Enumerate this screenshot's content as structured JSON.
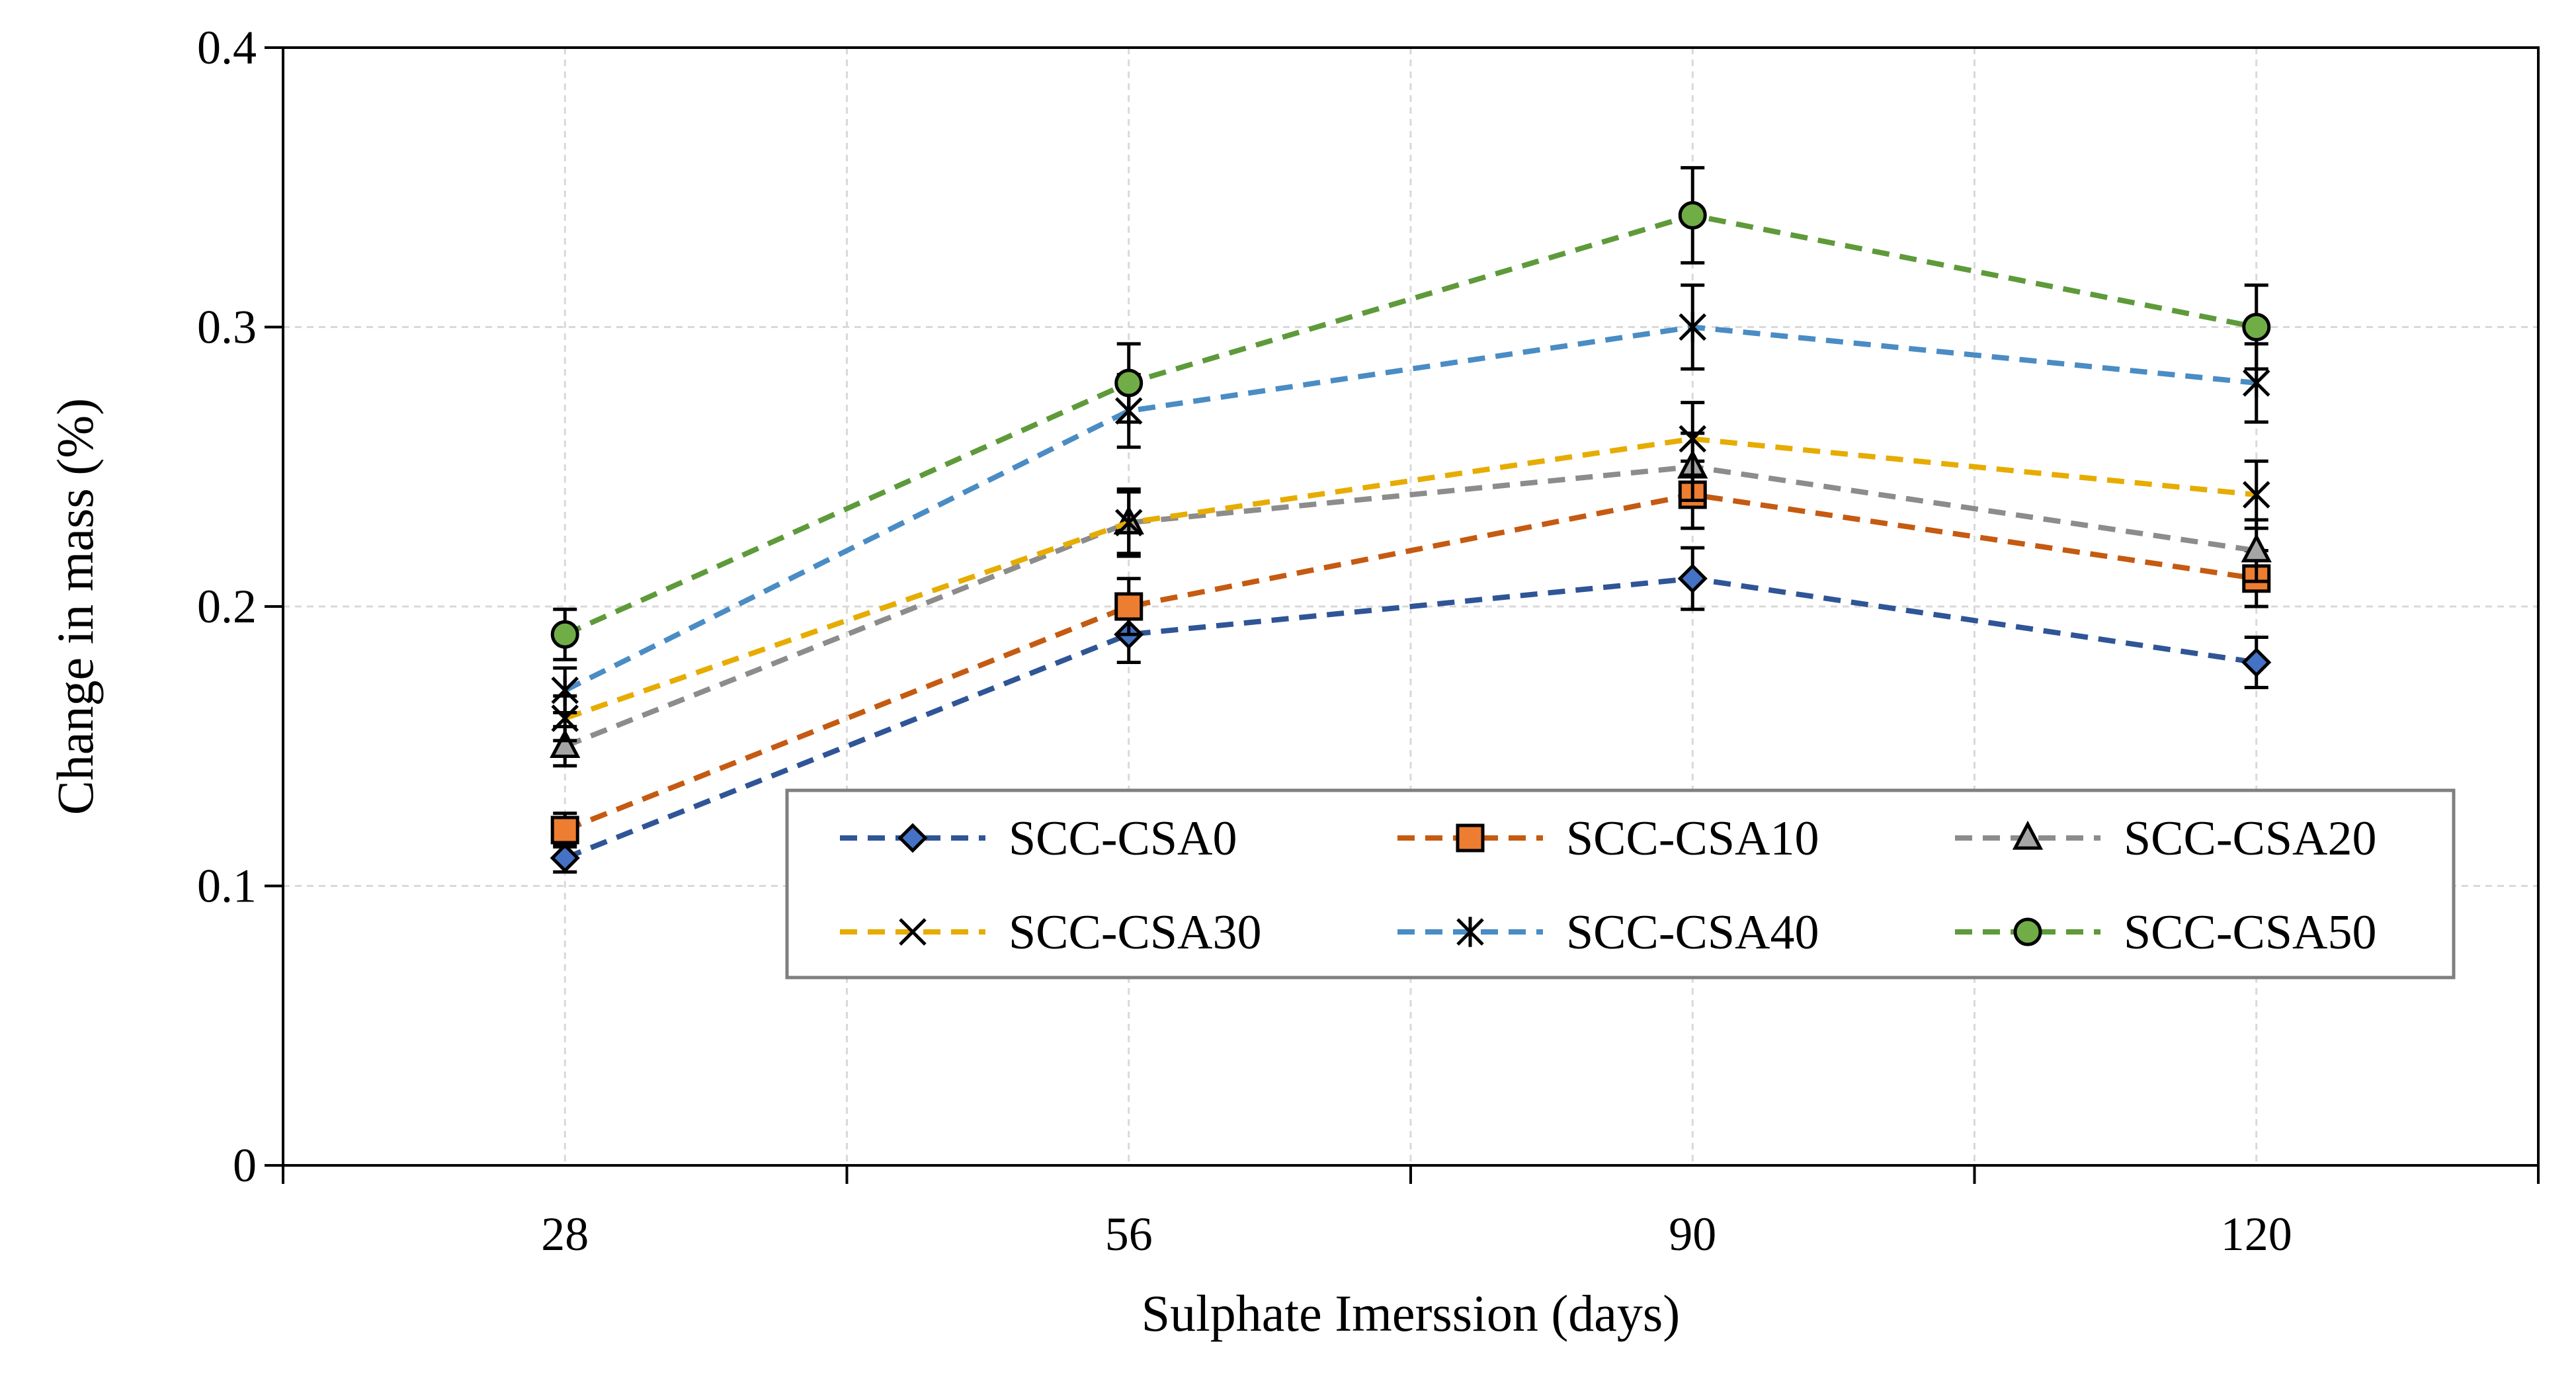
{
  "chart_data": {
    "type": "line",
    "title": "",
    "xlabel": "Sulphate Imerssion (days)",
    "ylabel": "Change in mass (%)",
    "categories": [
      "28",
      "56",
      "90",
      "120"
    ],
    "ylim": [
      0,
      0.4
    ],
    "yticks": [
      "0",
      "0.1",
      "0.2",
      "0.3",
      "0.4"
    ],
    "ytick_values": [
      0,
      0.1,
      0.2,
      0.3,
      0.4
    ],
    "grid": true,
    "legend_position": "center-right",
    "series": [
      {
        "name": "SCC-CSA0",
        "values": [
          0.11,
          0.19,
          0.21,
          0.18
        ],
        "errors": [
          0.005,
          0.01,
          0.011,
          0.009
        ],
        "color": "#2F5597",
        "marker": "diamond",
        "marker_fill": "#4472C4"
      },
      {
        "name": "SCC-CSA10",
        "values": [
          0.12,
          0.2,
          0.24,
          0.21
        ],
        "errors": [
          0.006,
          0.01,
          0.012,
          0.01
        ],
        "color": "#C55A11",
        "marker": "square",
        "marker_fill": "#ED7D31"
      },
      {
        "name": "SCC-CSA20",
        "values": [
          0.15,
          0.23,
          0.25,
          0.22
        ],
        "errors": [
          0.007,
          0.011,
          0.012,
          0.011
        ],
        "color": "#8C8C8C",
        "marker": "triangle",
        "marker_fill": "#A5A5A5"
      },
      {
        "name": "SCC-CSA30",
        "values": [
          0.16,
          0.23,
          0.26,
          0.24
        ],
        "errors": [
          0.008,
          0.012,
          0.013,
          0.012
        ],
        "color": "#E6AC00",
        "marker": "x",
        "marker_fill": "none"
      },
      {
        "name": "SCC-CSA40",
        "values": [
          0.17,
          0.27,
          0.3,
          0.28
        ],
        "errors": [
          0.008,
          0.013,
          0.015,
          0.014
        ],
        "color": "#4A8CC4",
        "marker": "star",
        "marker_fill": "none"
      },
      {
        "name": "SCC-CSA50",
        "values": [
          0.19,
          0.28,
          0.34,
          0.3
        ],
        "errors": [
          0.009,
          0.014,
          0.017,
          0.015
        ],
        "color": "#5E9A3A",
        "marker": "circle",
        "marker_fill": "#70AD47"
      }
    ]
  }
}
